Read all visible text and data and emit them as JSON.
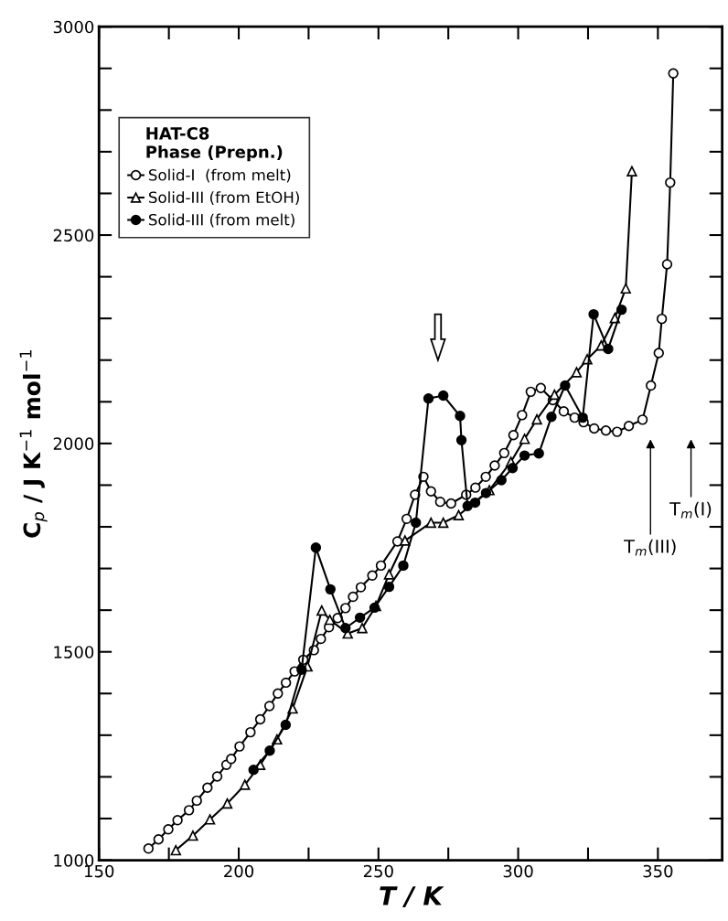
{
  "chart_data": {
    "type": "line",
    "xlabel": "T / K",
    "ylabel": "C$_{p}$ / J K$^{−1}$ mol$^{−1}$",
    "legend_title": "HAT-C8\nPhase (Prepn.)",
    "legend": "top left",
    "line_style": "solid",
    "grid": false,
    "xlim": [
      150,
      373
    ],
    "ylim": [
      1000,
      3000
    ],
    "xticks": [
      150,
      {
        "value": 175,
        "label": null
      },
      200,
      {
        "value": 225,
        "label": null
      },
      250,
      {
        "value": 275,
        "label": null
      },
      300,
      {
        "value": 325,
        "label": null
      },
      350
    ],
    "yticks": [
      1000,
      {
        "value": 1100,
        "label": null
      },
      {
        "value": 1200,
        "label": null
      },
      {
        "value": 1300,
        "label": null
      },
      {
        "value": 1400,
        "label": null
      },
      1500,
      {
        "value": 1600,
        "label": null
      },
      {
        "value": 1700,
        "label": null
      },
      {
        "value": 1800,
        "label": null
      },
      {
        "value": 1900,
        "label": null
      },
      2000,
      {
        "value": 2100,
        "label": null
      },
      {
        "value": 2200,
        "label": null
      },
      {
        "value": 2300,
        "label": null
      },
      {
        "value": 2400,
        "label": null
      },
      2500,
      {
        "value": 2600,
        "label": null
      },
      {
        "value": 2700,
        "label": null
      },
      {
        "value": 2800,
        "label": null
      },
      {
        "value": 2900,
        "label": null
      },
      3000
    ],
    "series": [
      {
        "name": "Solid-I  (from melt)",
        "color": "#000000",
        "marker": "circle",
        "x": [
          167.7,
          171.3,
          174.8,
          178.1,
          182.2,
          185.0,
          188.8,
          192.3,
          195.6,
          197.3,
          200.3,
          204.2,
          207.7,
          211.0,
          214.0,
          216.9,
          220.0,
          223.1,
          226.9,
          229.4,
          232.3,
          235.4,
          238.2,
          240.9,
          243.7,
          247.8,
          250.9,
          256.8,
          260.1,
          263.1,
          266.1,
          268.8,
          272.1,
          276.0,
          281.4,
          284.7,
          288.4,
          291.6,
          295.0,
          298.3,
          301.4,
          304.5,
          308.1,
          312.4,
          316.3,
          320.2,
          323.4,
          327.2,
          331.4,
          335.4,
          339.6,
          344.5,
          347.5,
          350.3,
          351.4,
          353.3,
          354.4,
          355.5
        ],
        "values": [
          1028,
          1050,
          1074,
          1096,
          1120,
          1143,
          1174,
          1201,
          1229,
          1243,
          1273,
          1307,
          1338,
          1370,
          1400,
          1426,
          1453,
          1481,
          1504,
          1531,
          1559,
          1581,
          1605,
          1632,
          1655,
          1683,
          1707,
          1765,
          1819,
          1877,
          1920,
          1885,
          1860,
          1856,
          1877,
          1894,
          1920,
          1947,
          1977,
          2020,
          2068,
          2124,
          2133,
          2104,
          2077,
          2062,
          2051,
          2036,
          2031,
          2028,
          2042,
          2057,
          2139,
          2217,
          2299,
          2430,
          2626,
          2888
        ]
      },
      {
        "name": "Solid-III (from EtOH)",
        "color": "#000000",
        "marker": "triangle",
        "x": [
          177.5,
          183.6,
          189.7,
          195.9,
          202.2,
          207.7,
          213.7,
          219.3,
          224.6,
          229.7,
          232.6,
          239.0,
          244.2,
          249.1,
          253.8,
          259.5,
          268.8,
          273.2,
          278.7,
          289.7,
          297.4,
          302.3,
          306.7,
          313.0,
          320.9,
          324.7,
          329.7,
          334.6,
          338.5,
          340.7
        ],
        "values": [
          1024,
          1059,
          1098,
          1136,
          1181,
          1229,
          1290,
          1364,
          1465,
          1599,
          1577,
          1544,
          1557,
          1610,
          1686,
          1767,
          1810,
          1810,
          1828,
          1888,
          1956,
          2011,
          2058,
          2117,
          2171,
          2202,
          2235,
          2301,
          2372,
          2653
        ]
      },
      {
        "name": "Solid-III (from melt)",
        "color": "#000000",
        "marker": "circle",
        "x": [
          205.3,
          211.1,
          216.8,
          222.5,
          227.6,
          232.8,
          238.2,
          243.4,
          248.6,
          253.8,
          258.9,
          263.4,
          267.9,
          273.2,
          279.2,
          279.7,
          281.9,
          284.6,
          288.5,
          294.0,
          298.0,
          302.3,
          307.4,
          311.9,
          316.8,
          323.1,
          327.0,
          332.2,
          337.0
        ],
        "values": [
          1217,
          1263,
          1325,
          1457,
          1750,
          1650,
          1557,
          1582,
          1606,
          1656,
          1707,
          1810,
          2108,
          2115,
          2066,
          2008,
          1850,
          1858,
          1881,
          1912,
          1941,
          1971,
          1976,
          2064,
          2139,
          2062,
          2310,
          2227,
          2321
        ]
      }
    ],
    "annotations": [
      "T$_{m}$(III)",
      "T$_{m}$(I)"
    ]
  }
}
